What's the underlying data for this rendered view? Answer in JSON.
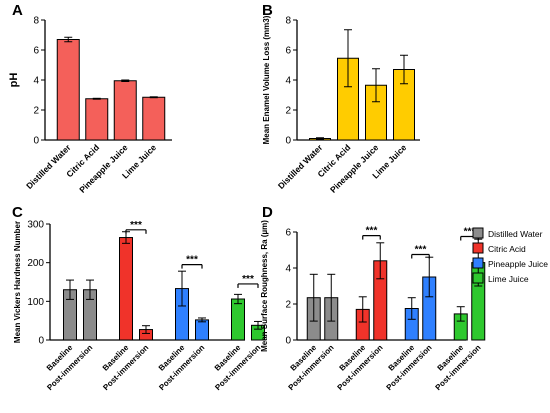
{
  "chart_data": [
    {
      "panel": "A",
      "type": "bar",
      "title": "",
      "xlabel": "",
      "ylabel": "pH",
      "ylim": [
        0,
        8
      ],
      "yticks": [
        0,
        2,
        4,
        6,
        8
      ],
      "categories": [
        "Distilled Water",
        "Citric Acid",
        "Pineapple Juice",
        "Lime Juice"
      ],
      "values": [
        6.7,
        2.75,
        3.95,
        2.85
      ],
      "errors": [
        0.15,
        0.03,
        0.05,
        0.03
      ],
      "colors": [
        "#f4605a",
        "#f4605a",
        "#f4605a",
        "#f4605a"
      ],
      "grid": false
    },
    {
      "panel": "B",
      "type": "bar",
      "title": "",
      "xlabel": "",
      "ylabel": "Mean Enamel Volume Loss (mm3)",
      "ylim": [
        0,
        8
      ],
      "yticks": [
        0,
        2,
        4,
        6,
        8
      ],
      "categories": [
        "Distilled Water",
        "Citric Acid",
        "Pineapple Juice",
        "Lime Juice"
      ],
      "values": [
        0.1,
        5.45,
        3.65,
        4.7
      ],
      "errors": [
        0.05,
        1.9,
        1.1,
        0.95
      ],
      "colors": [
        "#ffcc00",
        "#ffcc00",
        "#ffcc00",
        "#ffcc00"
      ],
      "grid": false
    },
    {
      "panel": "C",
      "type": "bar",
      "title": "",
      "xlabel": "",
      "ylabel": "Mean Vickers Hardness Number",
      "ylim": [
        0,
        300
      ],
      "yticks": [
        0,
        100,
        200,
        300
      ],
      "categories": [
        "Baseline",
        "Post-immersion",
        "Baseline",
        "Post-immersion",
        "Baseline",
        "Post-immersion",
        "Baseline",
        "Post-immersion"
      ],
      "groups": [
        "Distilled Water",
        "Distilled Water",
        "Citric Acid",
        "Citric Acid",
        "Pineapple Juice",
        "Pineapple Juice",
        "Lime Juice",
        "Lime Juice"
      ],
      "values": [
        130,
        130,
        265,
        27,
        133,
        52,
        106,
        38
      ],
      "errors": [
        25,
        25,
        15,
        10,
        45,
        5,
        12,
        10
      ],
      "colors": [
        "#8c8c8c",
        "#8c8c8c",
        "#f0332a",
        "#f0332a",
        "#2f80ff",
        "#2f80ff",
        "#2ec82e",
        "#2ec82e"
      ],
      "significance": [
        {
          "label": "***",
          "pair": [
            2,
            3
          ],
          "y": 285
        },
        {
          "label": "***",
          "pair": [
            4,
            5
          ],
          "y": 195
        },
        {
          "label": "***",
          "pair": [
            6,
            7
          ],
          "y": 145
        }
      ],
      "grid": false
    },
    {
      "panel": "D",
      "type": "bar",
      "title": "",
      "xlabel": "",
      "ylabel": "Mean Surface Roughness, Ra (µm)",
      "ylim": [
        0,
        6
      ],
      "yticks": [
        0,
        2,
        4,
        6
      ],
      "categories": [
        "Baseline",
        "Post-immersion",
        "Baseline",
        "Post-immersion",
        "Baseline",
        "Post-immersion",
        "Baseline",
        "Post-immersion"
      ],
      "groups": [
        "Distilled Water",
        "Distilled Water",
        "Citric Acid",
        "Citric Acid",
        "Pineapple Juice",
        "Pineapple Juice",
        "Lime Juice",
        "Lime Juice"
      ],
      "values": [
        2.35,
        2.35,
        1.7,
        4.4,
        1.75,
        3.5,
        1.45,
        4.3
      ],
      "errors": [
        1.3,
        1.3,
        0.7,
        1.0,
        0.6,
        1.1,
        0.4,
        1.3
      ],
      "colors": [
        "#8c8c8c",
        "#8c8c8c",
        "#f0332a",
        "#f0332a",
        "#2f80ff",
        "#2f80ff",
        "#2ec82e",
        "#2ec82e"
      ],
      "significance": [
        {
          "label": "***",
          "pair": [
            2,
            3
          ],
          "y": 5.8
        },
        {
          "label": "***",
          "pair": [
            4,
            5
          ],
          "y": 4.75
        },
        {
          "label": "***",
          "pair": [
            6,
            7
          ],
          "y": 5.75
        }
      ],
      "legend": [
        {
          "name": "Distilled Water",
          "color": "#8c8c8c"
        },
        {
          "name": "Citric Acid",
          "color": "#f0332a"
        },
        {
          "name": "Pineapple Juice",
          "color": "#2f80ff"
        },
        {
          "name": "Lime Juice",
          "color": "#2ec82e"
        }
      ],
      "legend_position": "right",
      "grid": false
    }
  ]
}
